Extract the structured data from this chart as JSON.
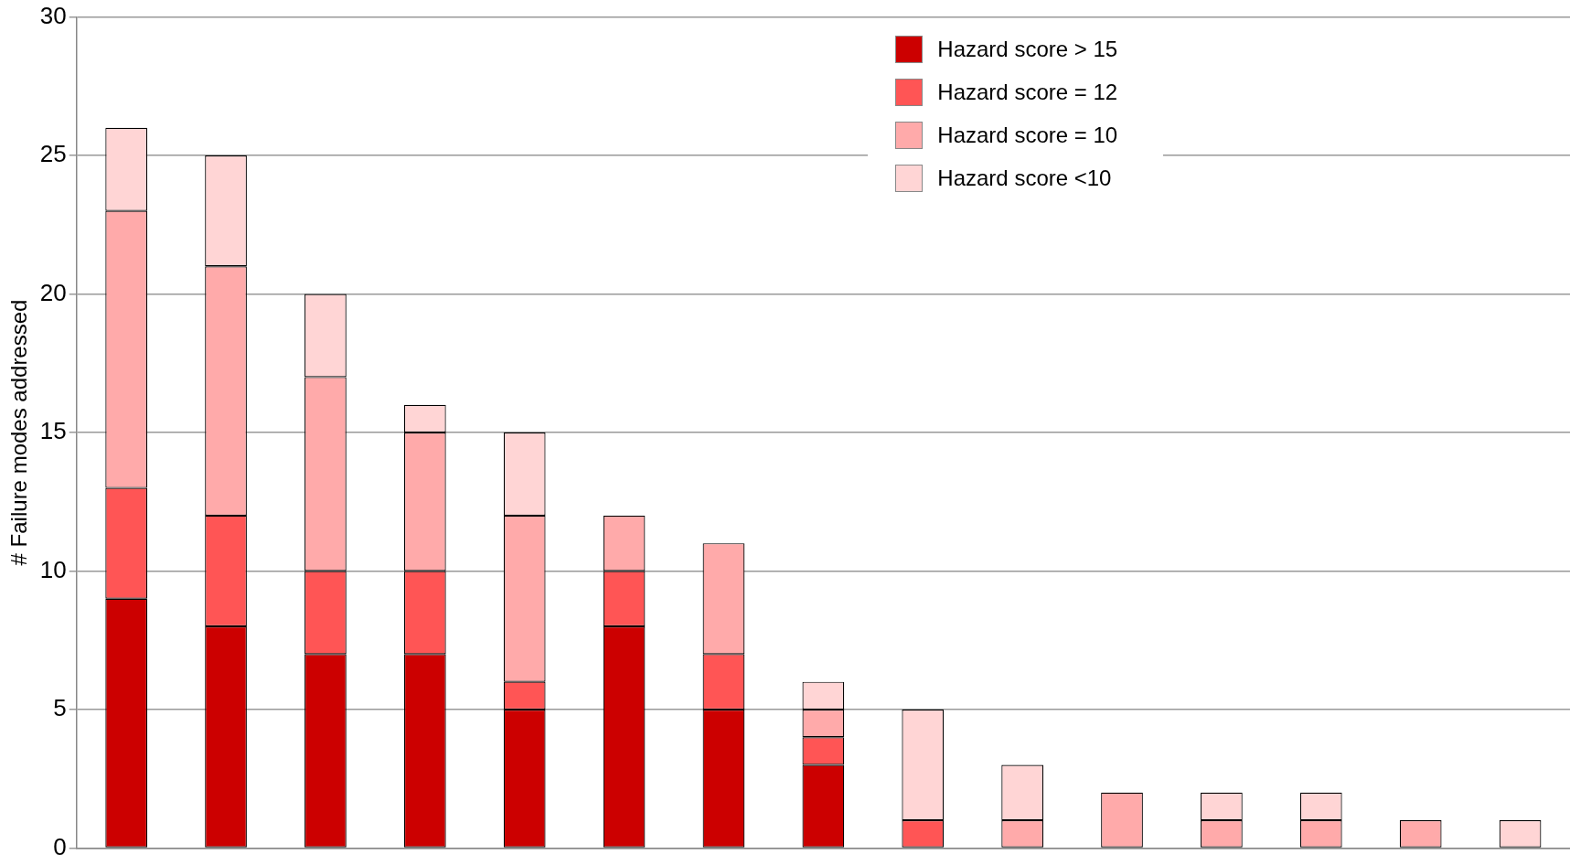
{
  "chart_data": {
    "type": "bar",
    "ylabel": "# Failure modes addressed",
    "categories": [
      null,
      null,
      null,
      null,
      null,
      null,
      null,
      null,
      null,
      null,
      null,
      null,
      null,
      null,
      null
    ],
    "stacked": true,
    "series": [
      {
        "name": "Hazard score > 15",
        "color": "#cc0000",
        "values": [
          9,
          8,
          7,
          7,
          5,
          8,
          5,
          3,
          0,
          0,
          0,
          0,
          0,
          0,
          0
        ]
      },
      {
        "name": "Hazard score = 12",
        "color": "#ff5555",
        "values": [
          4,
          4,
          3,
          3,
          1,
          2,
          2,
          1,
          1,
          0,
          0,
          0,
          0,
          0,
          0
        ]
      },
      {
        "name": "Hazard score = 10",
        "color": "#ffaaaa",
        "values": [
          10,
          9,
          7,
          5,
          6,
          2,
          4,
          1,
          0,
          1,
          2,
          1,
          1,
          1,
          0
        ]
      },
      {
        "name": "Hazard score <10",
        "color": "#ffd5d5",
        "values": [
          3,
          4,
          3,
          1,
          3,
          0,
          0,
          1,
          4,
          2,
          0,
          1,
          1,
          0,
          1
        ]
      }
    ],
    "ylim": [
      0,
      30
    ],
    "yticks": [
      0,
      5,
      10,
      15,
      20,
      25,
      30
    ],
    "grid": "y",
    "tick_labels": "y",
    "legend": "top right"
  }
}
